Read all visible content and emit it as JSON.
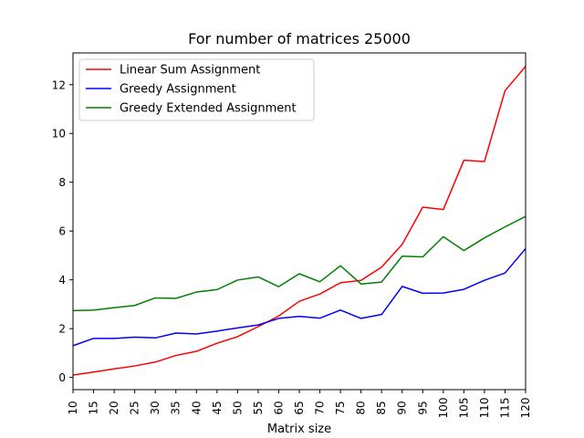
{
  "chart_data": {
    "type": "line",
    "title": "For number of matrices 25000",
    "xlabel": "Matrix size",
    "ylabel": "",
    "x": [
      10,
      15,
      20,
      25,
      30,
      35,
      40,
      45,
      50,
      55,
      60,
      65,
      70,
      75,
      80,
      85,
      90,
      95,
      100,
      105,
      110,
      115,
      120
    ],
    "xlim": [
      10,
      120
    ],
    "ylim": [
      -0.5,
      13.3
    ],
    "yticks": [
      0,
      2,
      4,
      6,
      8,
      10,
      12
    ],
    "legend_position": "upper-left",
    "series": [
      {
        "name": "Linear Sum Assignment",
        "color": "#ff0000",
        "values": [
          0.1,
          0.22,
          0.35,
          0.47,
          0.63,
          0.9,
          1.07,
          1.4,
          1.67,
          2.08,
          2.52,
          3.12,
          3.42,
          3.88,
          3.98,
          4.52,
          5.45,
          6.98,
          6.88,
          8.9,
          8.85,
          11.75,
          12.75
        ]
      },
      {
        "name": "Greedy Assignment",
        "color": "#0000ff",
        "values": [
          1.3,
          1.6,
          1.6,
          1.65,
          1.62,
          1.82,
          1.78,
          1.9,
          2.03,
          2.15,
          2.42,
          2.5,
          2.43,
          2.76,
          2.42,
          2.58,
          3.73,
          3.45,
          3.46,
          3.61,
          3.98,
          4.28,
          5.28
        ]
      },
      {
        "name": "Greedy Extended Assignment",
        "color": "#008000",
        "values": [
          2.74,
          2.76,
          2.86,
          2.95,
          3.26,
          3.24,
          3.5,
          3.6,
          3.99,
          4.12,
          3.72,
          4.25,
          3.92,
          4.58,
          3.83,
          3.91,
          4.97,
          4.94,
          5.77,
          5.2,
          5.72,
          6.17,
          6.6
        ]
      }
    ]
  }
}
